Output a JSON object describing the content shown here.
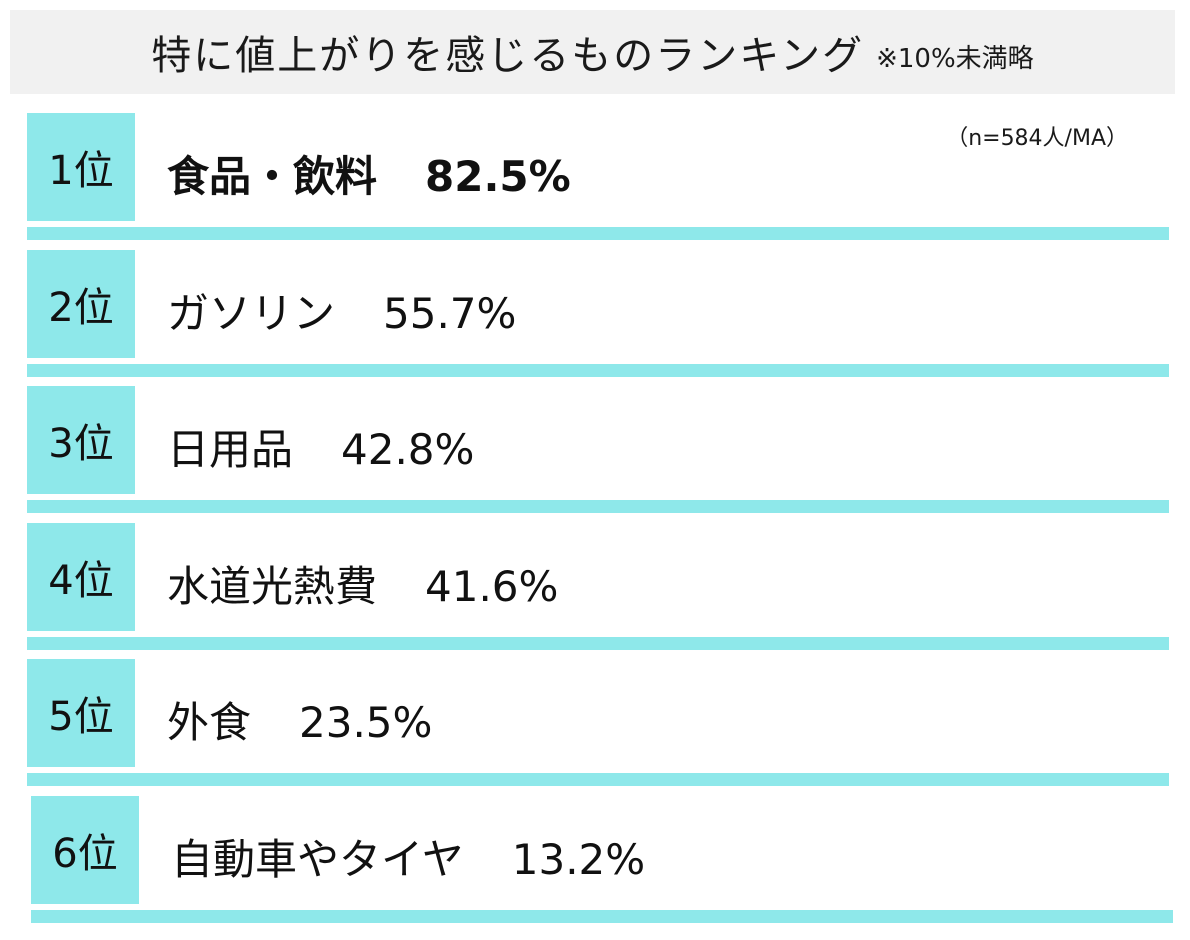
{
  "header": {
    "title": "特に値上がりを感じるものランキング",
    "note": "※10%未満略"
  },
  "sample_note": "（n=584人/MA）",
  "colors": {
    "accent": "#8ee8ea",
    "header_bg": "#f1f1f1"
  },
  "chart_data": {
    "type": "table",
    "title": "特に値上がりを感じるものランキング",
    "note": "※10%未満略",
    "sample": "（n=584人/MA）",
    "categories": [
      "食品・飲料",
      "ガソリン",
      "日用品",
      "水道光熱費",
      "外食",
      "自動車やタイヤ"
    ],
    "values": [
      82.5,
      55.7,
      42.8,
      41.6,
      23.5,
      13.2
    ],
    "unit": "%",
    "rows": [
      {
        "rank": "1位",
        "label": "食品・飲料",
        "value": "82.5%"
      },
      {
        "rank": "2位",
        "label": "ガソリン",
        "value": "55.7%"
      },
      {
        "rank": "3位",
        "label": "日用品",
        "value": "42.8%"
      },
      {
        "rank": "4位",
        "label": "水道光熱費",
        "value": "41.6%"
      },
      {
        "rank": "5位",
        "label": "外食",
        "value": "23.5%"
      },
      {
        "rank": "6位",
        "label": "自動車やタイヤ",
        "value": "13.2%"
      }
    ]
  }
}
